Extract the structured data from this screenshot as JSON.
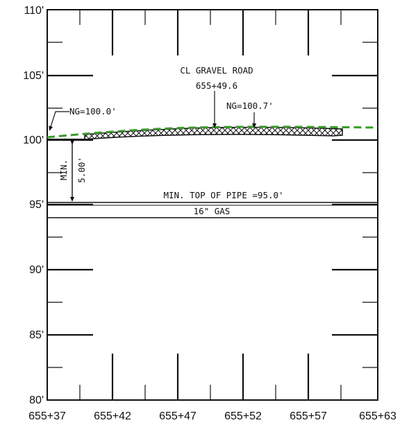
{
  "y_axis": {
    "ticks": [
      "110'",
      "105'",
      "100'",
      "95'",
      "90'",
      "85'",
      "80'"
    ]
  },
  "x_axis": {
    "ticks": [
      "655+37",
      "655+42",
      "655+47",
      "655+52",
      "655+57",
      "655+63"
    ]
  },
  "labels": {
    "road_title": "CL GRAVEL ROAD",
    "road_station": "655+49.6",
    "ng_left": "NG=100.0'",
    "ng_right": "NG=100.7'",
    "min_cover_a": "MIN.",
    "min_cover_b": "5.00'",
    "pipe_top": "MIN. TOP OF PIPE =95.0'",
    "pipe_name": "16\" GAS"
  },
  "colors": {
    "ground_line": "#3a9a2a",
    "ink": "#111111"
  }
}
